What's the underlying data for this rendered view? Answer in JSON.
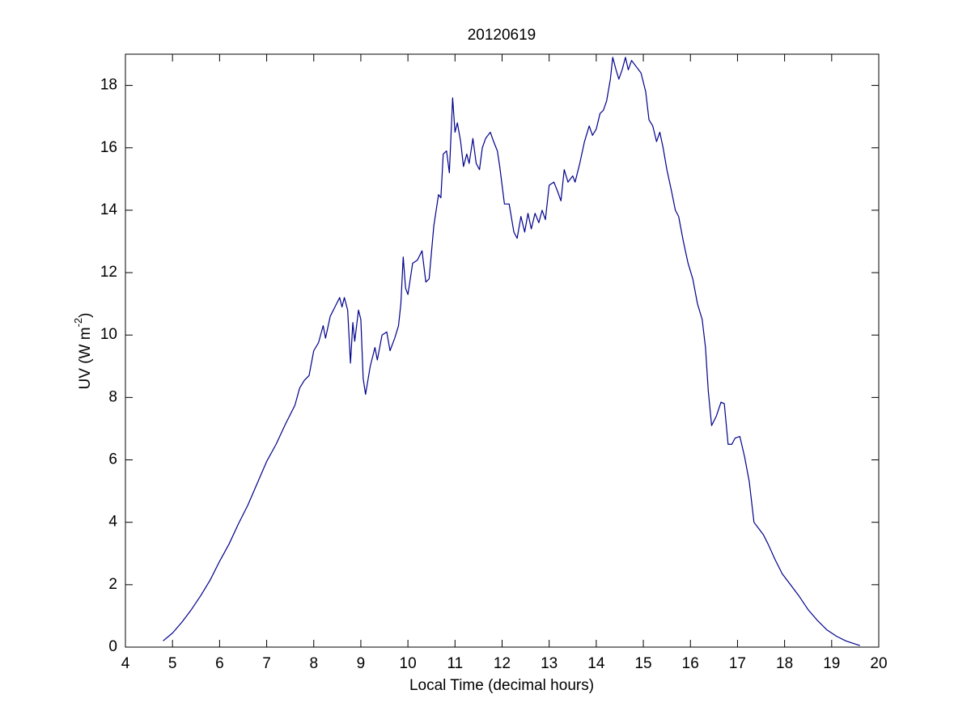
{
  "chart_data": {
    "type": "line",
    "title": "20120619",
    "xlabel": "Local Time (decimal hours)",
    "ylabel": {
      "text": "UV (W m",
      "superscript": "-2",
      "suffix": ")"
    },
    "xlim": [
      4,
      20
    ],
    "xticks": [
      4,
      5,
      6,
      7,
      8,
      9,
      10,
      11,
      12,
      13,
      14,
      15,
      16,
      17,
      18,
      19,
      20
    ],
    "ylim": [
      0,
      19
    ],
    "yticks": [
      0,
      2,
      4,
      6,
      8,
      10,
      12,
      14,
      16,
      18
    ],
    "grid": false,
    "series": [
      {
        "color": "#00008b",
        "x": [
          4.8,
          5.0,
          5.2,
          5.4,
          5.6,
          5.8,
          6.0,
          6.2,
          6.4,
          6.6,
          6.8,
          7.0,
          7.2,
          7.4,
          7.6,
          7.7,
          7.8,
          7.9,
          8.0,
          8.1,
          8.2,
          8.25,
          8.35,
          8.45,
          8.55,
          8.6,
          8.65,
          8.72,
          8.78,
          8.83,
          8.87,
          8.95,
          9.0,
          9.05,
          9.1,
          9.2,
          9.3,
          9.35,
          9.45,
          9.55,
          9.62,
          9.72,
          9.8,
          9.85,
          9.9,
          9.95,
          10.0,
          10.1,
          10.2,
          10.3,
          10.38,
          10.45,
          10.55,
          10.65,
          10.7,
          10.75,
          10.82,
          10.88,
          10.95,
          11.0,
          11.05,
          11.12,
          11.18,
          11.25,
          11.3,
          11.38,
          11.45,
          11.52,
          11.58,
          11.65,
          11.75,
          11.82,
          11.9,
          11.95,
          12.05,
          12.15,
          12.25,
          12.32,
          12.4,
          12.48,
          12.55,
          12.62,
          12.7,
          12.78,
          12.85,
          12.92,
          13.0,
          13.1,
          13.18,
          13.25,
          13.32,
          13.4,
          13.5,
          13.55,
          13.65,
          13.75,
          13.85,
          13.92,
          14.0,
          14.08,
          14.15,
          14.22,
          14.3,
          14.35,
          14.42,
          14.48,
          14.55,
          14.62,
          14.68,
          14.75,
          14.85,
          14.95,
          15.05,
          15.12,
          15.2,
          15.28,
          15.35,
          15.42,
          15.5,
          15.6,
          15.68,
          15.75,
          15.85,
          15.95,
          16.05,
          16.15,
          16.25,
          16.32,
          16.38,
          16.45,
          16.55,
          16.65,
          16.72,
          16.8,
          16.88,
          16.95,
          17.05,
          17.15,
          17.25,
          17.35,
          17.45,
          17.55,
          17.65,
          17.8,
          17.95,
          18.1,
          18.3,
          18.5,
          18.7,
          18.9,
          19.1,
          19.3,
          19.5,
          19.6
        ],
        "values": [
          0.2,
          0.45,
          0.8,
          1.2,
          1.65,
          2.15,
          2.75,
          3.3,
          3.95,
          4.55,
          5.25,
          5.95,
          6.5,
          7.15,
          7.75,
          8.3,
          8.55,
          8.7,
          9.5,
          9.75,
          10.3,
          9.9,
          10.6,
          10.9,
          11.2,
          10.9,
          11.2,
          10.8,
          9.1,
          10.4,
          9.8,
          10.8,
          10.5,
          8.6,
          8.1,
          9.0,
          9.6,
          9.2,
          10.0,
          10.1,
          9.5,
          9.9,
          10.3,
          11.0,
          12.5,
          11.5,
          11.3,
          12.3,
          12.4,
          12.7,
          11.7,
          11.8,
          13.5,
          14.5,
          14.4,
          15.8,
          15.9,
          15.2,
          17.6,
          16.5,
          16.8,
          16.2,
          15.4,
          15.8,
          15.5,
          16.3,
          15.5,
          15.3,
          16.0,
          16.3,
          16.5,
          16.2,
          15.9,
          15.4,
          14.2,
          14.2,
          13.3,
          13.1,
          13.8,
          13.3,
          13.9,
          13.4,
          13.9,
          13.6,
          14.0,
          13.7,
          14.8,
          14.9,
          14.6,
          14.3,
          15.3,
          14.9,
          15.1,
          14.9,
          15.5,
          16.2,
          16.7,
          16.4,
          16.6,
          17.1,
          17.2,
          17.5,
          18.2,
          18.9,
          18.5,
          18.2,
          18.5,
          18.9,
          18.5,
          18.8,
          18.6,
          18.4,
          17.8,
          16.9,
          16.7,
          16.2,
          16.5,
          16.0,
          15.3,
          14.6,
          14.0,
          13.8,
          13.0,
          12.3,
          11.8,
          11.0,
          10.5,
          9.6,
          8.2,
          7.1,
          7.4,
          7.85,
          7.8,
          6.5,
          6.5,
          6.7,
          6.75,
          6.1,
          5.3,
          4.0,
          3.8,
          3.6,
          3.3,
          2.8,
          2.35,
          2.05,
          1.65,
          1.2,
          0.85,
          0.55,
          0.35,
          0.2,
          0.1,
          0.05
        ]
      }
    ]
  }
}
